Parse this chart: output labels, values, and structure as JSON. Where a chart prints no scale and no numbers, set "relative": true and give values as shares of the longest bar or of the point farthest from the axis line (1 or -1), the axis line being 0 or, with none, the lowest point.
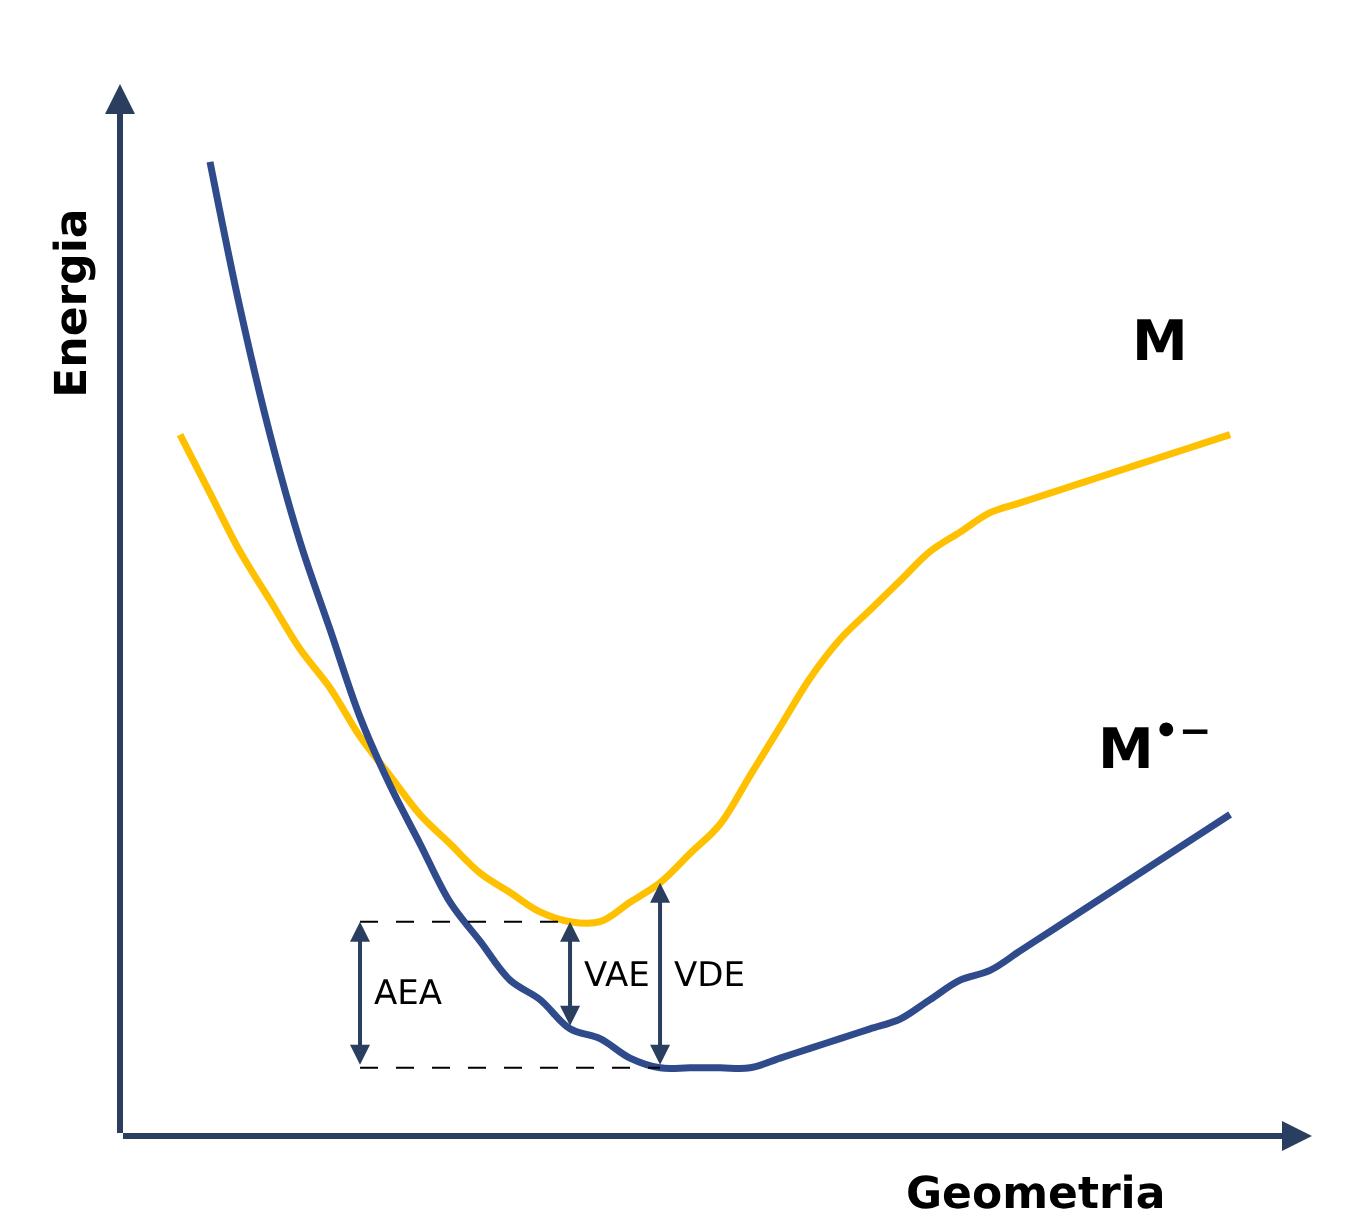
{
  "chart_data": {
    "type": "line",
    "relative": true,
    "xlabel": "Geometria",
    "ylabel": "Energia",
    "categories": [
      null,
      null,
      null,
      null,
      null,
      null,
      null,
      null,
      null,
      null,
      null,
      null,
      null,
      null,
      null,
      null,
      null,
      null,
      null,
      null,
      null,
      null,
      null,
      null,
      null,
      null,
      null,
      null,
      null,
      null,
      null,
      null,
      null,
      null,
      null,
      null
    ],
    "series": [
      {
        "name": "M",
        "color": "#ffc000",
        "values": [
          0.72,
          0.66,
          0.6,
          0.55,
          0.5,
          0.46,
          0.41,
          0.37,
          0.33,
          0.3,
          0.27,
          0.25,
          0.23,
          0.22,
          0.22,
          0.24,
          0.26,
          0.29,
          0.32,
          0.37,
          0.42,
          0.47,
          0.51,
          0.54,
          0.57,
          0.6,
          0.62,
          0.64,
          0.65,
          0.66,
          0.67,
          0.68,
          0.69,
          0.7,
          0.71,
          0.72
        ]
      },
      {
        "name": "M$^{•−}$",
        "color": "#2f4b8c",
        "values": [
          null,
          1.0,
          0.85,
          0.72,
          0.61,
          0.52,
          0.43,
          0.36,
          0.3,
          0.24,
          0.2,
          0.16,
          0.14,
          0.11,
          0.1,
          0.08,
          0.07,
          0.07,
          0.07,
          0.07,
          0.08,
          0.09,
          0.1,
          0.11,
          0.12,
          0.14,
          0.16,
          0.17,
          0.19,
          0.21,
          0.23,
          0.25,
          0.27,
          0.29,
          0.31,
          0.33
        ]
      }
    ],
    "annotations": [
      "AEA",
      "VAE",
      "VDE"
    ],
    "legend": false
  }
}
